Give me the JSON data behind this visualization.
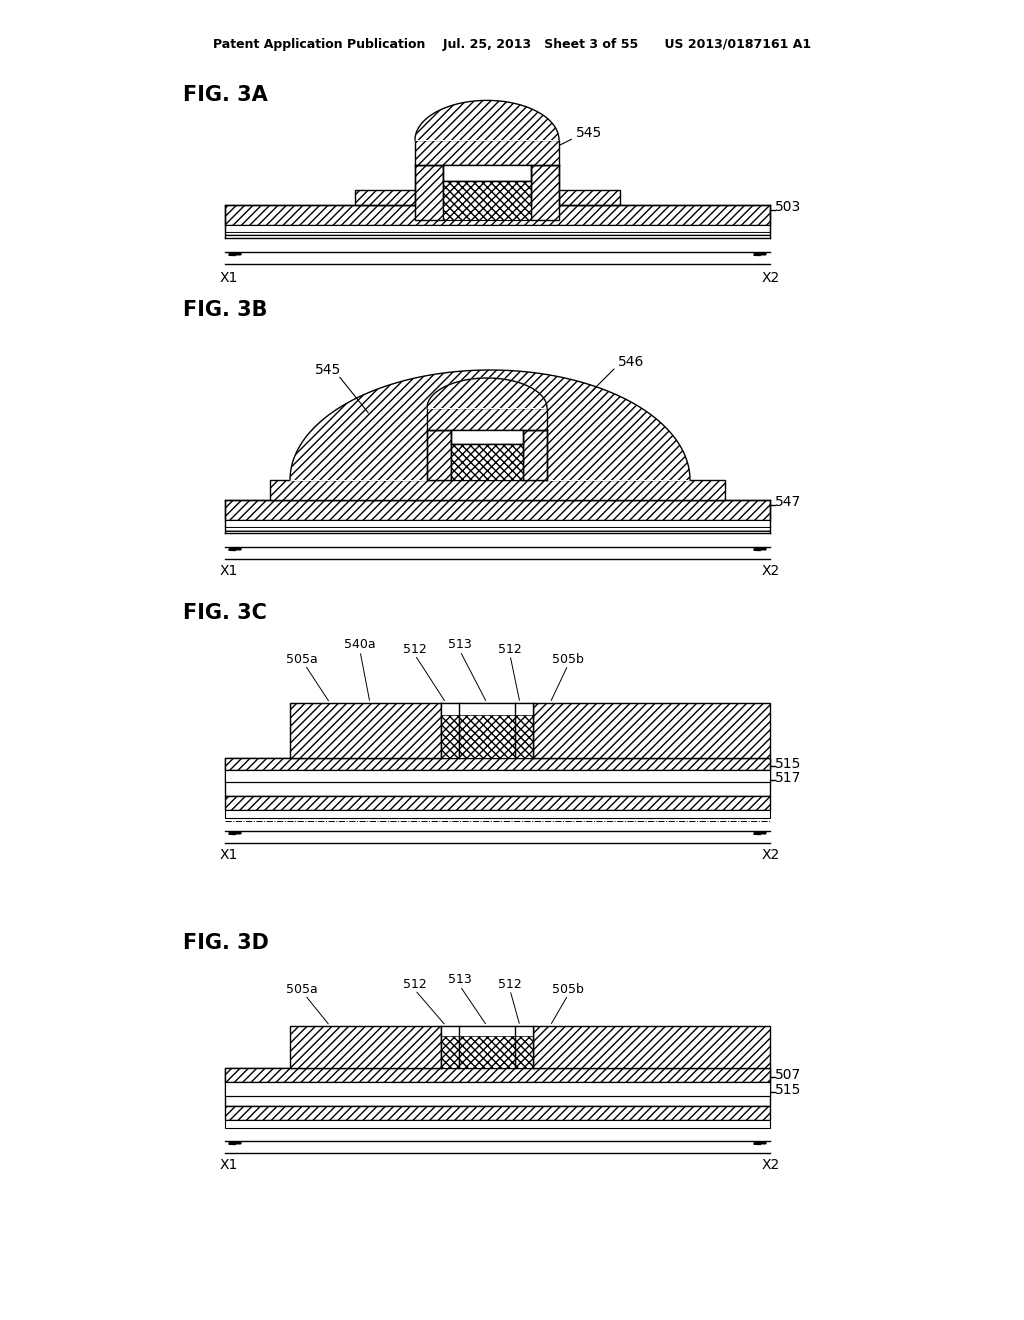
{
  "title_line": "Patent Application Publication    Jul. 25, 2013   Sheet 3 of 55      US 2013/0187161 A1",
  "bg_color": "#ffffff",
  "line_color": "#000000",
  "fig3a_label": "FIG. 3A",
  "fig3b_label": "FIG. 3B",
  "fig3c_label": "FIG. 3C",
  "fig3d_label": "FIG. 3D"
}
